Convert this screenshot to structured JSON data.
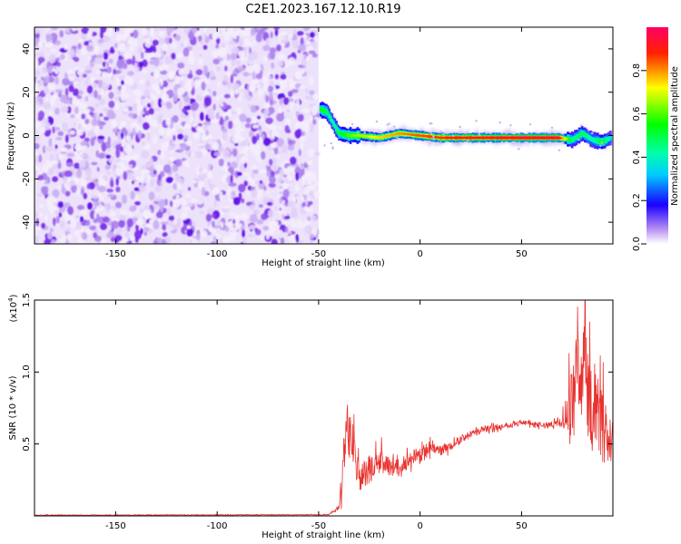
{
  "title": "C2E1.2023.167.12.10.R19",
  "colorbar": {
    "label": "Normalized spectral amplitude",
    "ticks": [
      "0.0",
      "0.2",
      "0.4",
      "0.6",
      "0.8"
    ],
    "tick_values": [
      0.0,
      0.2,
      0.4,
      0.6,
      0.8
    ],
    "range": [
      0,
      1
    ]
  },
  "colors": {
    "line": "#e8332f",
    "noise": "#7a1fe0",
    "axis": "#000000"
  },
  "chart_data": [
    {
      "type": "heatmap",
      "name": "spectrogram",
      "xlabel": "Height of straight line (km)",
      "ylabel": "Frequency (Hz)",
      "xlim": [
        -190,
        95
      ],
      "ylim": [
        -50,
        50
      ],
      "xticks": [
        -150,
        -100,
        -50,
        0,
        50
      ],
      "xtick_labels": [
        "-150",
        "-100",
        "-50",
        "0",
        "50"
      ],
      "yticks": [
        -40,
        -20,
        0,
        20,
        40
      ],
      "ytick_labels": [
        "-40",
        "-20",
        "0",
        "20",
        "40"
      ],
      "noise_region_x": [
        -190,
        -50
      ],
      "ridge": {
        "x": [
          -49,
          -46,
          -43,
          -40,
          -35,
          -30,
          -20,
          -10,
          0,
          10,
          20,
          30,
          40,
          50,
          60,
          68,
          75,
          80,
          85,
          90,
          94
        ],
        "freq": [
          12,
          11,
          6,
          1,
          0,
          0,
          -1,
          1,
          0,
          -1,
          -1,
          -1,
          -1,
          -1,
          -1,
          -1,
          -2,
          1,
          -2,
          -3,
          -1
        ],
        "amplitude": [
          0.5,
          0.45,
          0.35,
          0.45,
          0.55,
          0.6,
          0.7,
          0.75,
          0.8,
          0.82,
          0.85,
          0.85,
          0.88,
          0.9,
          0.9,
          0.92,
          0.4,
          0.45,
          0.35,
          0.5,
          0.3
        ]
      }
    },
    {
      "type": "line",
      "name": "snr",
      "xlabel": "Height of straight line (km)",
      "ylabel": "SNR (10 * v/v)",
      "scale_label": "(x10",
      "scale_exponent": "4",
      "scale_close": ")",
      "xlim": [
        -190,
        95
      ],
      "ylim": [
        0,
        15000
      ],
      "xticks": [
        -150,
        -100,
        -50,
        0,
        50
      ],
      "xtick_labels": [
        "-150",
        "-100",
        "-50",
        "0",
        "50"
      ],
      "yticks": [
        5000,
        10000,
        15000
      ],
      "ytick_labels": [
        "0.5",
        "1.0",
        "1.5"
      ],
      "envelope": {
        "x": [
          -190,
          -45,
          -40,
          -38,
          -36,
          -34,
          -30,
          -25,
          -20,
          -15,
          -10,
          -5,
          0,
          5,
          10,
          20,
          30,
          40,
          50,
          60,
          70,
          72,
          75,
          78,
          80,
          83,
          86,
          90,
          95
        ],
        "y": [
          50,
          80,
          600,
          3500,
          6500,
          5500,
          2500,
          3200,
          3800,
          3500,
          3300,
          4000,
          4300,
          4800,
          4500,
          5300,
          6000,
          6200,
          6500,
          6300,
          6500,
          7000,
          8000,
          10000,
          11000,
          9000,
          8000,
          6000,
          5000
        ],
        "amplitude": [
          40,
          40,
          300,
          2500,
          3500,
          3000,
          1800,
          1600,
          1500,
          1200,
          1000,
          900,
          800,
          700,
          600,
          500,
          400,
          300,
          300,
          300,
          500,
          2500,
          4500,
          6000,
          6500,
          6000,
          5000,
          4000,
          2500
        ]
      }
    }
  ]
}
